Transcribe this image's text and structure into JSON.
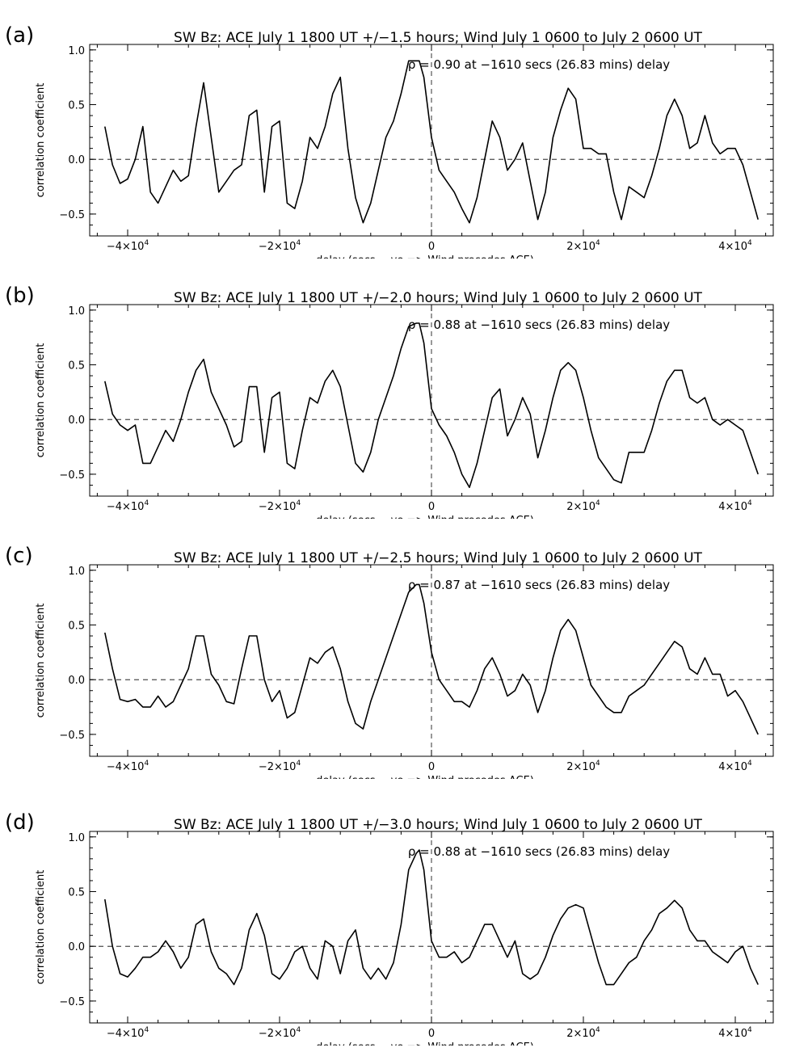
{
  "figure": {
    "xlabel": "delay (secs, −ve => Wind precedes ACE)",
    "ylabel": "correlation coefficient",
    "x_ticks": [
      {
        "value": -40000,
        "label": "−4×10",
        "exp": "4"
      },
      {
        "value": -20000,
        "label": "−2×10",
        "exp": "4"
      },
      {
        "value": 0,
        "label": "0",
        "exp": ""
      },
      {
        "value": 20000,
        "label": "2×10",
        "exp": "4"
      },
      {
        "value": 40000,
        "label": "4×10",
        "exp": "4"
      }
    ],
    "line_color": "#000000",
    "reference_line_style": "dashed"
  },
  "chart_data": [
    {
      "panel_label": "(a)",
      "type": "line",
      "title": "SW Bz: ACE July 1 1800 UT +/−1.5 hours; Wind July 1 0600 to July 2 0600 UT",
      "annotation": "ρ = 0.90 at −1610 secs (26.83 mins) delay",
      "xlim": [
        -45000,
        45000
      ],
      "ylim": [
        -0.7,
        1.05
      ],
      "y_ticks": [
        {
          "value": 1.0,
          "label": "1.0"
        },
        {
          "value": 0.5,
          "label": "0.5"
        },
        {
          "value": 0.0,
          "label": "0.0"
        },
        {
          "value": -0.5,
          "label": "−0.5"
        }
      ],
      "peak": {
        "x": -1610,
        "y": 0.9
      },
      "x": [
        -43000,
        -42000,
        -41000,
        -40000,
        -39000,
        -38000,
        -37000,
        -36000,
        -35000,
        -34000,
        -33000,
        -32000,
        -31000,
        -30000,
        -29000,
        -28000,
        -27000,
        -26000,
        -25000,
        -24000,
        -23000,
        -22000,
        -21000,
        -20000,
        -19000,
        -18000,
        -17000,
        -16000,
        -15000,
        -14000,
        -13000,
        -12000,
        -11000,
        -10000,
        -9000,
        -8000,
        -7000,
        -6000,
        -5000,
        -4000,
        -3000,
        -2000,
        -1610,
        -1000,
        0,
        1000,
        2000,
        3000,
        4000,
        5000,
        6000,
        7000,
        8000,
        9000,
        10000,
        11000,
        12000,
        13000,
        14000,
        15000,
        16000,
        17000,
        18000,
        19000,
        20000,
        21000,
        22000,
        23000,
        24000,
        25000,
        26000,
        27000,
        28000,
        29000,
        30000,
        31000,
        32000,
        33000,
        34000,
        35000,
        36000,
        37000,
        38000,
        39000,
        40000,
        41000,
        42000,
        43000
      ],
      "y": [
        0.3,
        -0.05,
        -0.22,
        -0.18,
        0.0,
        0.3,
        -0.3,
        -0.4,
        -0.25,
        -0.1,
        -0.2,
        -0.15,
        0.3,
        0.7,
        0.2,
        -0.3,
        -0.2,
        -0.1,
        -0.05,
        0.4,
        0.45,
        -0.3,
        0.3,
        0.35,
        -0.4,
        -0.45,
        -0.2,
        0.2,
        0.1,
        0.3,
        0.6,
        0.75,
        0.1,
        -0.35,
        -0.58,
        -0.4,
        -0.1,
        0.2,
        0.35,
        0.6,
        0.9,
        0.9,
        0.9,
        0.75,
        0.2,
        -0.1,
        -0.2,
        -0.3,
        -0.45,
        -0.58,
        -0.35,
        0.0,
        0.35,
        0.2,
        -0.1,
        0.0,
        0.15,
        -0.2,
        -0.55,
        -0.3,
        0.2,
        0.45,
        0.65,
        0.55,
        0.1,
        0.1,
        0.05,
        0.05,
        -0.3,
        -0.55,
        -0.25,
        -0.3,
        -0.35,
        -0.15,
        0.1,
        0.4,
        0.55,
        0.4,
        0.1,
        0.15,
        0.4,
        0.15,
        0.05,
        0.1,
        0.1,
        -0.05,
        -0.3,
        -0.55
      ]
    },
    {
      "panel_label": "(b)",
      "type": "line",
      "title": "SW Bz: ACE July 1 1800 UT +/−2.0 hours; Wind July 1 0600 to July 2 0600 UT",
      "annotation": "ρ = 0.88 at −1610 secs (26.83 mins) delay",
      "xlim": [
        -45000,
        45000
      ],
      "ylim": [
        -0.7,
        1.05
      ],
      "y_ticks": [
        {
          "value": 1.0,
          "label": "1.0"
        },
        {
          "value": 0.5,
          "label": "0.5"
        },
        {
          "value": 0.0,
          "label": "0.0"
        },
        {
          "value": -0.5,
          "label": "−0.5"
        }
      ],
      "peak": {
        "x": -1610,
        "y": 0.88
      },
      "x": [
        -43000,
        -42000,
        -41000,
        -40000,
        -39000,
        -38000,
        -37000,
        -36000,
        -35000,
        -34000,
        -33000,
        -32000,
        -31000,
        -30000,
        -29000,
        -28000,
        -27000,
        -26000,
        -25000,
        -24000,
        -23000,
        -22000,
        -21000,
        -20000,
        -19000,
        -18000,
        -17000,
        -16000,
        -15000,
        -14000,
        -13000,
        -12000,
        -11000,
        -10000,
        -9000,
        -8000,
        -7000,
        -6000,
        -5000,
        -4000,
        -3000,
        -2000,
        -1610,
        -1000,
        0,
        1000,
        2000,
        3000,
        4000,
        5000,
        6000,
        7000,
        8000,
        9000,
        10000,
        11000,
        12000,
        13000,
        14000,
        15000,
        16000,
        17000,
        18000,
        19000,
        20000,
        21000,
        22000,
        23000,
        24000,
        25000,
        26000,
        27000,
        28000,
        29000,
        30000,
        31000,
        32000,
        33000,
        34000,
        35000,
        36000,
        37000,
        38000,
        39000,
        40000,
        41000,
        42000,
        43000
      ],
      "y": [
        0.35,
        0.05,
        -0.05,
        -0.1,
        -0.05,
        -0.4,
        -0.4,
        -0.25,
        -0.1,
        -0.2,
        0.0,
        0.25,
        0.45,
        0.55,
        0.25,
        0.1,
        -0.05,
        -0.25,
        -0.2,
        0.3,
        0.3,
        -0.3,
        0.2,
        0.25,
        -0.4,
        -0.45,
        -0.1,
        0.2,
        0.15,
        0.35,
        0.45,
        0.3,
        -0.05,
        -0.4,
        -0.48,
        -0.3,
        0.0,
        0.2,
        0.4,
        0.65,
        0.85,
        0.88,
        0.88,
        0.7,
        0.1,
        -0.05,
        -0.15,
        -0.3,
        -0.5,
        -0.62,
        -0.4,
        -0.1,
        0.2,
        0.28,
        -0.15,
        0.0,
        0.2,
        0.05,
        -0.35,
        -0.1,
        0.2,
        0.45,
        0.52,
        0.45,
        0.2,
        -0.1,
        -0.35,
        -0.45,
        -0.55,
        -0.58,
        -0.3,
        -0.3,
        -0.3,
        -0.1,
        0.15,
        0.35,
        0.45,
        0.45,
        0.2,
        0.15,
        0.2,
        0.0,
        -0.05,
        0.0,
        -0.05,
        -0.1,
        -0.3,
        -0.5
      ]
    },
    {
      "panel_label": "(c)",
      "type": "line",
      "title": "SW Bz: ACE July 1 1800 UT +/−2.5 hours; Wind July 1 0600 to July 2 0600 UT",
      "annotation": "ρ = 0.87 at −1610 secs (26.83 mins) delay",
      "xlim": [
        -45000,
        45000
      ],
      "ylim": [
        -0.7,
        1.05
      ],
      "y_ticks": [
        {
          "value": 1.0,
          "label": "1.0"
        },
        {
          "value": 0.5,
          "label": "0.5"
        },
        {
          "value": 0.0,
          "label": "0.0"
        },
        {
          "value": -0.5,
          "label": "−0.5"
        }
      ],
      "peak": {
        "x": -1610,
        "y": 0.87
      },
      "x": [
        -43000,
        -42000,
        -41000,
        -40000,
        -39000,
        -38000,
        -37000,
        -36000,
        -35000,
        -34000,
        -33000,
        -32000,
        -31000,
        -30000,
        -29000,
        -28000,
        -27000,
        -26000,
        -25000,
        -24000,
        -23000,
        -22000,
        -21000,
        -20000,
        -19000,
        -18000,
        -17000,
        -16000,
        -15000,
        -14000,
        -13000,
        -12000,
        -11000,
        -10000,
        -9000,
        -8000,
        -7000,
        -6000,
        -5000,
        -4000,
        -3000,
        -2000,
        -1610,
        -1000,
        0,
        1000,
        2000,
        3000,
        4000,
        5000,
        6000,
        7000,
        8000,
        9000,
        10000,
        11000,
        12000,
        13000,
        14000,
        15000,
        16000,
        17000,
        18000,
        19000,
        20000,
        21000,
        22000,
        23000,
        24000,
        25000,
        26000,
        27000,
        28000,
        29000,
        30000,
        31000,
        32000,
        33000,
        34000,
        35000,
        36000,
        37000,
        38000,
        39000,
        40000,
        41000,
        42000,
        43000
      ],
      "y": [
        0.43,
        0.1,
        -0.18,
        -0.2,
        -0.18,
        -0.25,
        -0.25,
        -0.15,
        -0.25,
        -0.2,
        -0.05,
        0.1,
        0.4,
        0.4,
        0.05,
        -0.05,
        -0.2,
        -0.22,
        0.1,
        0.4,
        0.4,
        0.0,
        -0.2,
        -0.1,
        -0.35,
        -0.3,
        -0.05,
        0.2,
        0.15,
        0.25,
        0.3,
        0.1,
        -0.2,
        -0.4,
        -0.45,
        -0.2,
        0.0,
        0.2,
        0.4,
        0.6,
        0.8,
        0.87,
        0.87,
        0.7,
        0.25,
        0.0,
        -0.1,
        -0.2,
        -0.2,
        -0.25,
        -0.1,
        0.1,
        0.2,
        0.05,
        -0.15,
        -0.1,
        0.05,
        -0.05,
        -0.3,
        -0.1,
        0.2,
        0.45,
        0.55,
        0.45,
        0.2,
        -0.05,
        -0.15,
        -0.25,
        -0.3,
        -0.3,
        -0.15,
        -0.1,
        -0.05,
        0.05,
        0.15,
        0.25,
        0.35,
        0.3,
        0.1,
        0.05,
        0.2,
        0.05,
        0.05,
        -0.15,
        -0.1,
        -0.2,
        -0.35,
        -0.5
      ]
    },
    {
      "panel_label": "(d)",
      "type": "line",
      "title": "SW Bz: ACE July 1 1800 UT +/−3.0 hours; Wind July 1 0600 to July 2 0600 UT",
      "annotation": "ρ = 0.88 at −1610 secs (26.83 mins) delay",
      "xlim": [
        -45000,
        45000
      ],
      "ylim": [
        -0.7,
        1.05
      ],
      "y_ticks": [
        {
          "value": 1.0,
          "label": "1.0"
        },
        {
          "value": 0.5,
          "label": "0.5"
        },
        {
          "value": 0.0,
          "label": "0.0"
        },
        {
          "value": -0.5,
          "label": "−0.5"
        }
      ],
      "peak": {
        "x": -1610,
        "y": 0.88
      },
      "x": [
        -43000,
        -42000,
        -41000,
        -40000,
        -39000,
        -38000,
        -37000,
        -36000,
        -35000,
        -34000,
        -33000,
        -32000,
        -31000,
        -30000,
        -29000,
        -28000,
        -27000,
        -26000,
        -25000,
        -24000,
        -23000,
        -22000,
        -21000,
        -20000,
        -19000,
        -18000,
        -17000,
        -16000,
        -15000,
        -14000,
        -13000,
        -12000,
        -11000,
        -10000,
        -9000,
        -8000,
        -7000,
        -6000,
        -5000,
        -4000,
        -3000,
        -2000,
        -1610,
        -1000,
        0,
        1000,
        2000,
        3000,
        4000,
        5000,
        6000,
        7000,
        8000,
        9000,
        10000,
        11000,
        12000,
        13000,
        14000,
        15000,
        16000,
        17000,
        18000,
        19000,
        20000,
        21000,
        22000,
        23000,
        24000,
        25000,
        26000,
        27000,
        28000,
        29000,
        30000,
        31000,
        32000,
        33000,
        34000,
        35000,
        36000,
        37000,
        38000,
        39000,
        40000,
        41000,
        42000,
        43000
      ],
      "y": [
        0.43,
        0.0,
        -0.25,
        -0.28,
        -0.2,
        -0.1,
        -0.1,
        -0.05,
        0.05,
        -0.05,
        -0.2,
        -0.1,
        0.2,
        0.25,
        -0.05,
        -0.2,
        -0.25,
        -0.35,
        -0.2,
        0.15,
        0.3,
        0.1,
        -0.25,
        -0.3,
        -0.2,
        -0.05,
        0.0,
        -0.2,
        -0.3,
        0.05,
        0.0,
        -0.25,
        0.05,
        0.15,
        -0.2,
        -0.3,
        -0.2,
        -0.3,
        -0.15,
        0.2,
        0.7,
        0.85,
        0.88,
        0.7,
        0.05,
        -0.1,
        -0.1,
        -0.05,
        -0.15,
        -0.1,
        0.05,
        0.2,
        0.2,
        0.05,
        -0.1,
        0.05,
        -0.25,
        -0.3,
        -0.25,
        -0.1,
        0.1,
        0.25,
        0.35,
        0.38,
        0.35,
        0.1,
        -0.15,
        -0.35,
        -0.35,
        -0.25,
        -0.15,
        -0.1,
        0.05,
        0.15,
        0.3,
        0.35,
        0.42,
        0.35,
        0.15,
        0.05,
        0.05,
        -0.05,
        -0.1,
        -0.15,
        -0.05,
        0.0,
        -0.2,
        -0.35
      ]
    }
  ]
}
